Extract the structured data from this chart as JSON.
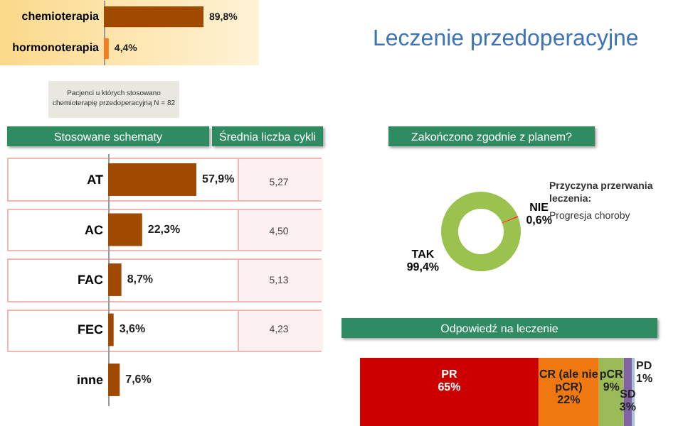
{
  "chart_data": [
    {
      "type": "bar",
      "orientation": "horizontal",
      "categories": [
        "chemioterapia",
        "hormonoterapia"
      ],
      "values": [
        89.8,
        4.4
      ],
      "value_labels": [
        "89,8%",
        "4,4%"
      ],
      "colors": [
        "#9f4a00",
        "#f07d20"
      ],
      "annotations": [
        "Leczenie przedoperacyjne",
        "Pacjenci u których stosowano chemioterapię przedoperacyjną N = 82"
      ]
    },
    {
      "type": "bar",
      "orientation": "horizontal",
      "title": "Stosowane schematy",
      "categories": [
        "AT",
        "AC",
        "FAC",
        "FEC",
        "inne"
      ],
      "values": [
        57.9,
        22.3,
        8.7,
        3.6,
        7.6
      ],
      "value_labels": [
        "57,9%",
        "22,3%",
        "8,7%",
        "3,6%",
        "7,6%"
      ],
      "color": "#9f4a00"
    },
    {
      "type": "other",
      "title": "Średnia liczba cykli",
      "categories": [
        null,
        null,
        null,
        null
      ],
      "values": [
        5.27,
        4.5,
        5.13,
        4.23
      ],
      "value_labels": [
        "5,27",
        "4,50",
        "5,13",
        "4,23"
      ]
    },
    {
      "type": "donut",
      "title": "Zakończono zgodnie z planem?",
      "categories": [
        "TAK",
        "NIE"
      ],
      "values": [
        99.4,
        0.6
      ],
      "value_labels": [
        "99,4%",
        "0,6%"
      ],
      "colors": [
        "#9bc24e",
        "#e8401c"
      ],
      "annotations": [
        "Przyczyna przerwania leczenia:",
        "Progresja choroby"
      ]
    },
    {
      "type": "bar",
      "orientation": "horizontal",
      "stacked": true,
      "title": "Odpowiedź na leczenie",
      "categories": [
        null
      ],
      "series": [
        {
          "name": "PR",
          "color": "#cc0000",
          "values": [
            65
          ],
          "value_labels": [
            "65%"
          ]
        },
        {
          "name": "CR (ale nie pCR)",
          "color": "#f07810",
          "values": [
            22
          ],
          "value_labels": [
            "22%"
          ]
        },
        {
          "name": "pCR",
          "color": "#9bbb59",
          "values": [
            9
          ],
          "value_labels": [
            "9%"
          ]
        },
        {
          "name": "SD",
          "color": "#8064a2",
          "values": [
            3
          ],
          "value_labels": [
            "3%"
          ]
        },
        {
          "name": "PD",
          "color": "#a8c0e0",
          "values": [
            1
          ],
          "value_labels": [
            "1%"
          ]
        }
      ]
    }
  ]
}
